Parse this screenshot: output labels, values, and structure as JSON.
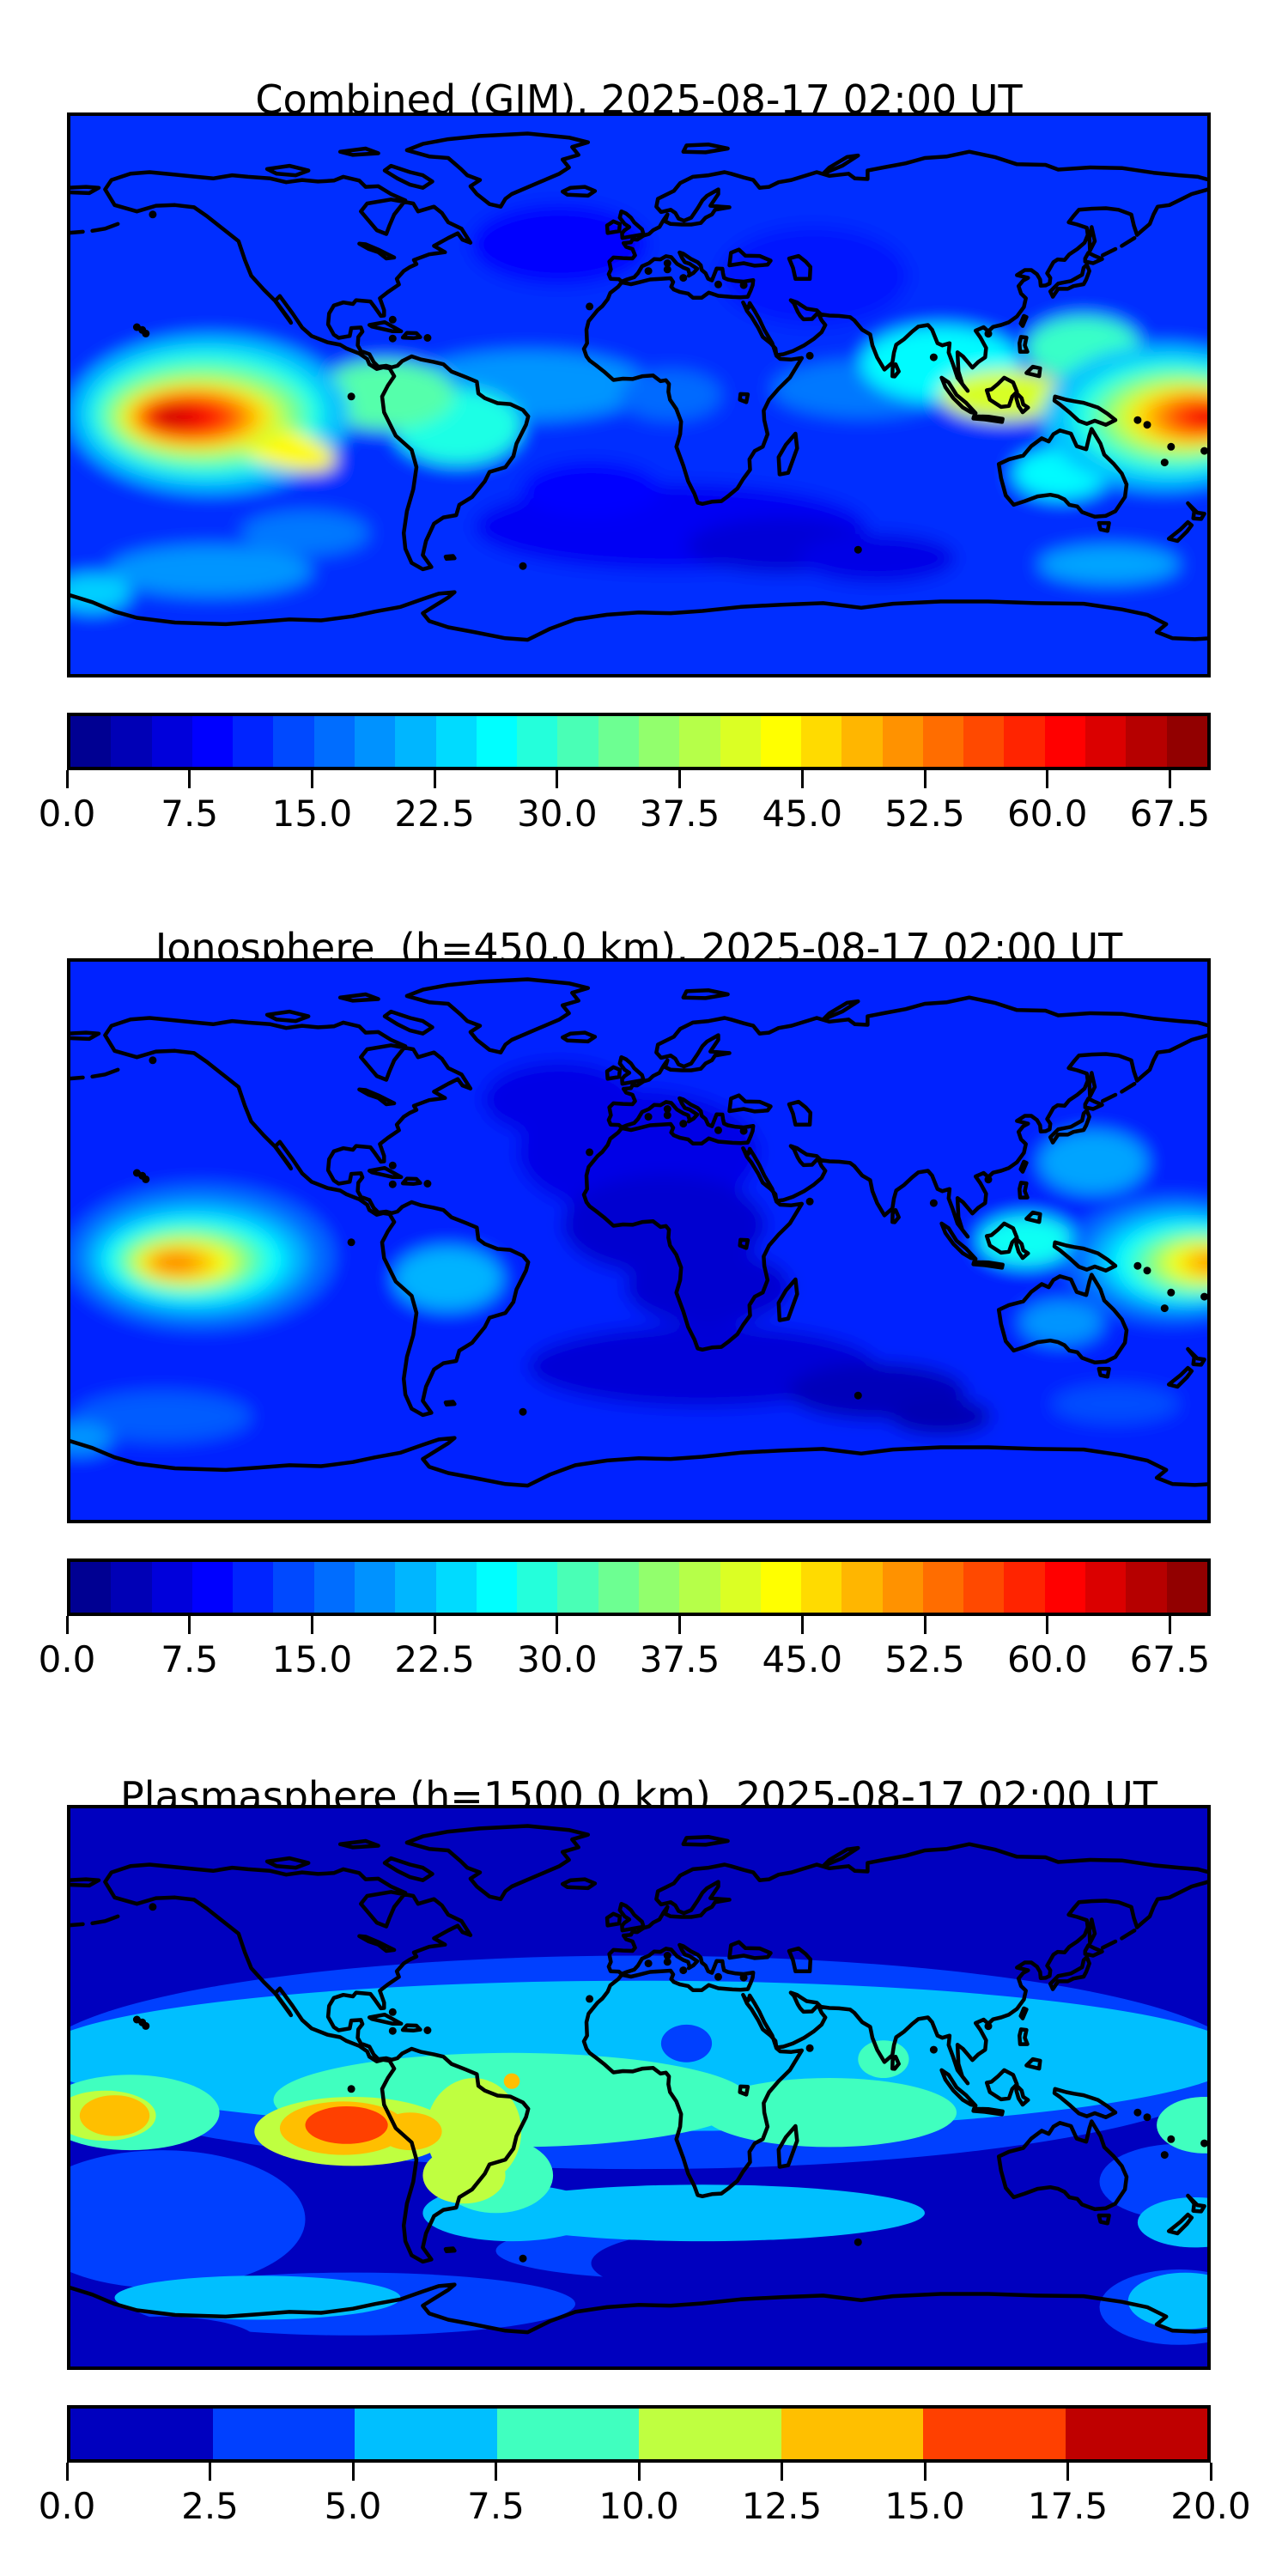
{
  "figure": {
    "background": "#ffffff",
    "colormap": "jet",
    "overlay": "world coastlines, black, equirectangular projection"
  },
  "panels": [
    {
      "id": "combined",
      "title": "Combined (GIM), 2025-08-17 02:00 UT",
      "colorbar": {
        "min": 0,
        "max": 70,
        "segments": 28,
        "tick_values": [
          0.0,
          7.5,
          15.0,
          22.5,
          30.0,
          37.5,
          45.0,
          52.5,
          60.0,
          67.5
        ],
        "tick_labels": [
          "0.0",
          "7.5",
          "15.0",
          "22.5",
          "30.0",
          "37.5",
          "45.0",
          "52.5",
          "60.0",
          "67.5"
        ]
      }
    },
    {
      "id": "ionosphere",
      "title": "Ionosphere  (h=450.0 km), 2025-08-17 02:00 UT",
      "colorbar": {
        "min": 0,
        "max": 70,
        "segments": 28,
        "tick_values": [
          0.0,
          7.5,
          15.0,
          22.5,
          30.0,
          37.5,
          45.0,
          52.5,
          60.0,
          67.5
        ],
        "tick_labels": [
          "0.0",
          "7.5",
          "15.0",
          "22.5",
          "30.0",
          "37.5",
          "45.0",
          "52.5",
          "60.0",
          "67.5"
        ]
      }
    },
    {
      "id": "plasmasphere",
      "title": "Plasmasphere (h=1500.0 km), 2025-08-17 02:00 UT",
      "colorbar": {
        "min": 0,
        "max": 20,
        "segments": 8,
        "tick_values": [
          0.0,
          2.5,
          5.0,
          7.5,
          10.0,
          12.5,
          15.0,
          17.5,
          20.0
        ],
        "tick_labels": [
          "0.0",
          "2.5",
          "5.0",
          "7.5",
          "10.0",
          "12.5",
          "15.0",
          "17.5",
          "20.0"
        ]
      }
    }
  ],
  "chart_data": [
    {
      "type": "heatmap",
      "subtype": "filled_contour_world_map",
      "title": "Combined (GIM), 2025-08-17 02:00 UT",
      "projection": "equirectangular",
      "lon_range": [
        -180,
        180
      ],
      "lat_range": [
        -90,
        90
      ],
      "colormap": "jet",
      "levels": {
        "min": 0,
        "max": 70,
        "step": 2.5
      },
      "colorbar_ticks": [
        0.0,
        7.5,
        15.0,
        22.5,
        30.0,
        37.5,
        45.0,
        52.5,
        60.0,
        67.5
      ],
      "legend_position": "bottom",
      "grid": false,
      "features": [
        {
          "name": "equatorial-anomaly-peak-central-pacific",
          "lon": -142,
          "lat": -7,
          "value": 65
        },
        {
          "name": "equatorial-anomaly-peak-western-pacific",
          "lon": 178,
          "lat": -7,
          "value": 62
        },
        {
          "name": "yellow-green-belt-indonesia",
          "lon": 115,
          "lat": 0,
          "value": 41
        },
        {
          "name": "south-america-equator-teal",
          "lon": -57,
          "lat": -10,
          "value": 28
        },
        {
          "name": "minimum-south-atlantic-indian-midlatitudes",
          "lon": 35,
          "lat": -45,
          "value": 6
        },
        {
          "name": "background-northern-hemisphere",
          "lon": 0,
          "lat": 50,
          "value": 12
        }
      ]
    },
    {
      "type": "heatmap",
      "subtype": "filled_contour_world_map",
      "title": "Ionosphere  (h=450.0 km), 2025-08-17 02:00 UT",
      "projection": "equirectangular",
      "lon_range": [
        -180,
        180
      ],
      "lat_range": [
        -90,
        90
      ],
      "colormap": "jet",
      "levels": {
        "min": 0,
        "max": 70,
        "step": 2.5
      },
      "colorbar_ticks": [
        0.0,
        7.5,
        15.0,
        22.5,
        30.0,
        37.5,
        45.0,
        52.5,
        60.0,
        67.5
      ],
      "legend_position": "bottom",
      "grid": false,
      "features": [
        {
          "name": "equatorial-anomaly-peak-central-pacific",
          "lon": -145,
          "lat": -7,
          "value": 52
        },
        {
          "name": "equatorial-anomaly-peak-western-pacific",
          "lon": 178,
          "lat": -7,
          "value": 50
        },
        {
          "name": "minimum-atlantic-europe-africa",
          "lon": 8,
          "lat": 5,
          "value": 5
        },
        {
          "name": "minimum-south-indian-ocean",
          "lon": 85,
          "lat": -50,
          "value": 4
        },
        {
          "name": "background-northern-hemisphere",
          "lon": -150,
          "lat": 50,
          "value": 11
        }
      ]
    },
    {
      "type": "heatmap",
      "subtype": "filled_contour_world_map",
      "title": "Plasmasphere (h=1500.0 km), 2025-08-17 02:00 UT",
      "projection": "equirectangular",
      "lon_range": [
        -180,
        180
      ],
      "lat_range": [
        -90,
        90
      ],
      "colormap": "jet",
      "levels": {
        "min": 0,
        "max": 20,
        "step": 2.5
      },
      "colorbar_ticks": [
        0.0,
        2.5,
        5.0,
        7.5,
        10.0,
        12.5,
        15.0,
        17.5,
        20.0
      ],
      "legend_position": "bottom",
      "grid": false,
      "features": [
        {
          "name": "plume-peak-east-pacific-south-america",
          "lon": -92,
          "lat": -12,
          "value": 17
        },
        {
          "name": "secondary-peak-left-edge-pacific",
          "lon": -165,
          "lat": -9,
          "value": 14
        },
        {
          "name": "yellow-green-patch-brazil",
          "lon": -52,
          "lat": -14,
          "value": 11
        },
        {
          "name": "equatorial-belt",
          "lon": 0,
          "lat": -5,
          "value": 9
        },
        {
          "name": "background-high-latitudes",
          "lon": 0,
          "lat": 65,
          "value": 1.5
        }
      ]
    }
  ]
}
